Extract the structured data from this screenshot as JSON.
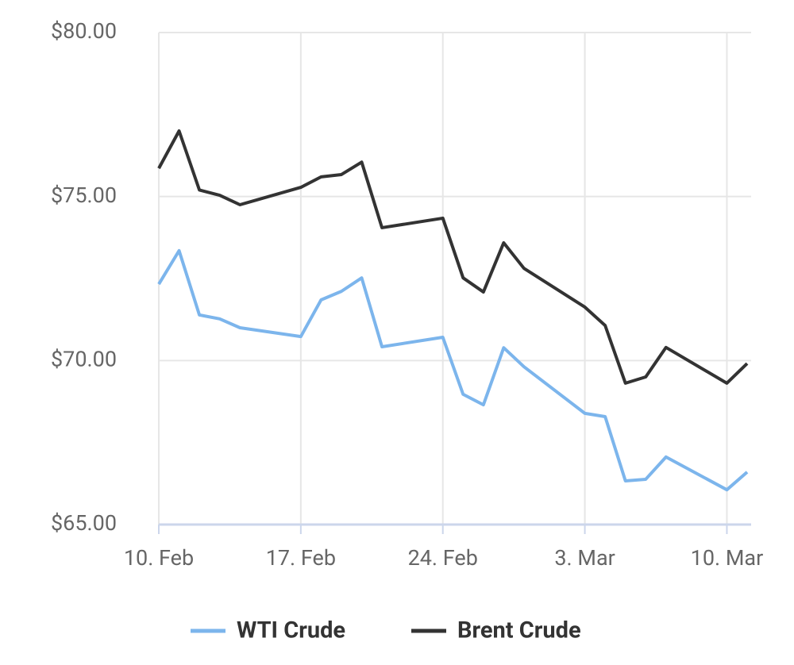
{
  "chart_data": {
    "type": "line",
    "x": [
      "10. Feb",
      "11. Feb",
      "12. Feb",
      "13. Feb",
      "14. Feb",
      "17. Feb",
      "18. Feb",
      "19. Feb",
      "20. Feb",
      "21. Feb",
      "24. Feb",
      "25. Feb",
      "26. Feb",
      "27. Feb",
      "28. Feb",
      "3. Mar",
      "4. Mar",
      "5. Mar",
      "6. Mar",
      "7. Mar",
      "10. Mar",
      "11. Mar"
    ],
    "series": [
      {
        "name": "WTI Crude",
        "color": "#7cb5ec",
        "values": [
          72.33,
          73.35,
          71.39,
          71.27,
          71.0,
          70.73,
          71.85,
          72.11,
          72.52,
          70.42,
          70.71,
          68.97,
          68.65,
          70.39,
          69.81,
          68.39,
          68.29,
          66.33,
          66.38,
          67.06,
          66.06,
          66.6
        ]
      },
      {
        "name": "Brent Crude",
        "color": "#333333",
        "values": [
          75.86,
          77.0,
          75.2,
          75.04,
          74.75,
          75.28,
          75.6,
          75.67,
          76.05,
          74.05,
          74.34,
          72.52,
          72.09,
          73.59,
          72.81,
          71.63,
          71.07,
          69.31,
          69.5,
          70.4,
          69.31,
          69.91
        ]
      }
    ],
    "xlim": [
      "10. Feb",
      "11. Mar"
    ],
    "xticks": [
      "10. Feb",
      "17. Feb",
      "24. Feb",
      "3. Mar",
      "10. Mar"
    ],
    "ylim": [
      65,
      80
    ],
    "yticks": [
      {
        "value": 65,
        "label": "$65.00"
      },
      {
        "value": 70,
        "label": "$70.00"
      },
      {
        "value": 75,
        "label": "$75.00"
      },
      {
        "value": 80,
        "label": "$80.00"
      }
    ],
    "grid": true,
    "legend": "bottom"
  }
}
